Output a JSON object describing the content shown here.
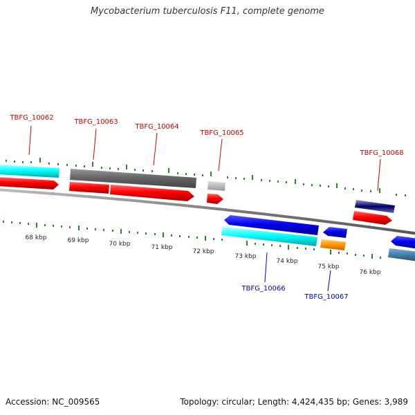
{
  "title": "Mycobacterium tuberculosis F11, complete genome",
  "footer": {
    "accession": "Accession: NC_009565",
    "topology": "Topology: circular; Length: 4,424,435 bp; Genes: 3,989"
  },
  "ruler_ticks": [
    "68 kbp",
    "69 kbp",
    "70 kbp",
    "71 kbp",
    "72 kbp",
    "73 kbp",
    "74 kbp",
    "75 kbp",
    "76 kbp"
  ],
  "genes": [
    {
      "label": "TBFG_10062",
      "strand": "forward",
      "color": "#cc0000"
    },
    {
      "label": "TBFG_10063",
      "strand": "forward",
      "color": "#cc0000"
    },
    {
      "label": "TBFG_10064",
      "strand": "forward",
      "color": "#cc0000"
    },
    {
      "label": "TBFG_10065",
      "strand": "forward",
      "color": "#cc0000"
    },
    {
      "label": "TBFG_10068",
      "strand": "forward",
      "color": "#cc0000"
    },
    {
      "label": "TBFG_10066",
      "strand": "reverse",
      "color": "#0000cc"
    },
    {
      "label": "TBFG_10067",
      "strand": "reverse",
      "color": "#0000cc"
    }
  ],
  "colors": {
    "forward_cds": "#ff0000",
    "reverse_cds": "#0000ee",
    "backbone": "#808080",
    "tick": "#228b22",
    "cyan_feature": "#00ffff",
    "gray_feature": "#666666",
    "orange_feature": "#ff9900",
    "steel_feature": "#4682b4"
  }
}
